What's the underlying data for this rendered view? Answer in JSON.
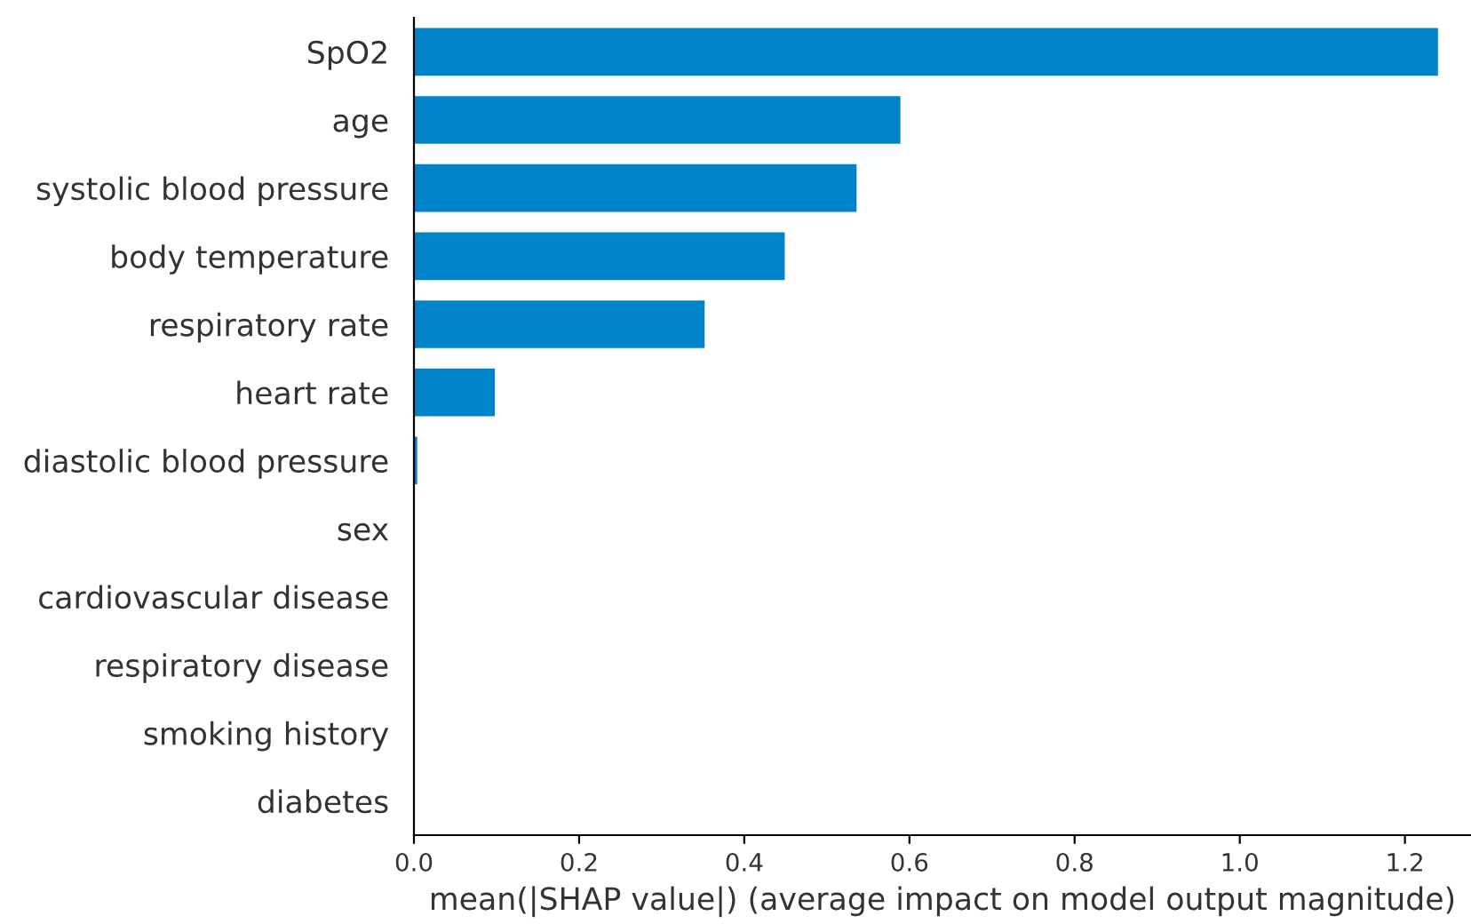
{
  "chart_data": {
    "type": "bar",
    "orientation": "horizontal",
    "xlabel": "mean(|SHAP value|) (average impact on model output magnitude)",
    "categories": [
      "SpO2",
      "age",
      "systolic blood pressure",
      "body temperature",
      "respiratory rate",
      "heart rate",
      "diastolic blood pressure",
      "sex",
      "cardiovascular disease",
      "respiratory disease",
      "smoking history",
      "diabetes"
    ],
    "values": [
      1.24,
      0.589,
      0.536,
      0.449,
      0.352,
      0.098,
      0.004,
      0,
      0,
      0,
      0,
      0
    ],
    "color": "#0083c8",
    "xlim": [
      0,
      1.28
    ],
    "xticks": [
      {
        "value": 0,
        "label": "0.0"
      },
      0.2,
      0.4,
      0.6,
      0.8,
      {
        "value": 1,
        "label": "1.0"
      },
      1.2
    ],
    "grid": false,
    "legend": false
  }
}
